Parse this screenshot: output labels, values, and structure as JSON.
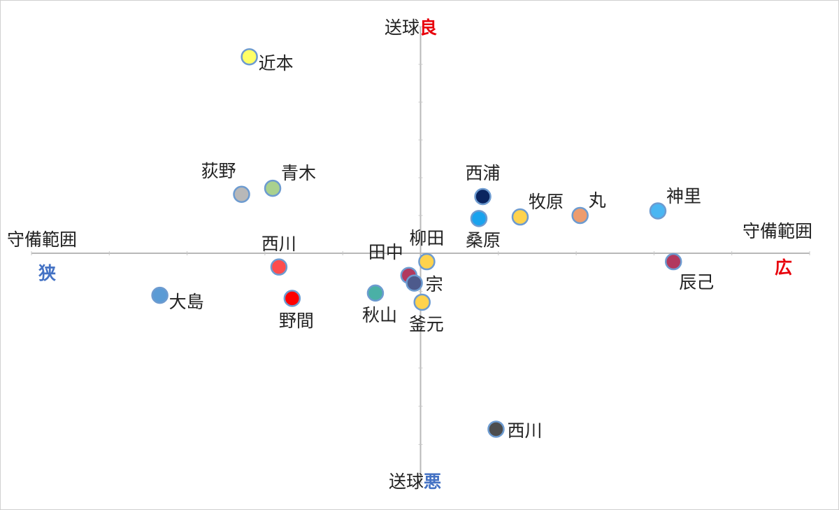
{
  "colors": {
    "axis": "#b8b8b8",
    "tick": "#c8c8c8",
    "label": "#222222",
    "good_wide": "#e8000b",
    "bad_narrow": "#4472c4",
    "point_outline": "#6d9bd0"
  },
  "labels": {
    "top_prefix": "送球",
    "top_accent": "良",
    "bottom_prefix": "送球",
    "bottom_accent": "悪",
    "left_axis": "守備範囲",
    "left_accent": "狭",
    "right_axis": "守備範囲",
    "right_accent": "広"
  },
  "chart_data": {
    "type": "scatter",
    "xlim": [
      -5,
      5
    ],
    "ylim": [
      -3,
      3
    ],
    "grid": false,
    "points": [
      {
        "name": "近本",
        "x": -2.2,
        "y": 2.6,
        "color": "#ffff66",
        "label_dir": "right-below"
      },
      {
        "name": "荻野",
        "x": -2.3,
        "y": 0.78,
        "color": "#b8b8b8",
        "label_dir": "upleft"
      },
      {
        "name": "青木",
        "x": -1.9,
        "y": 0.86,
        "color": "#a9d18e",
        "label_dir": "upright"
      },
      {
        "name": "西浦",
        "x": 0.8,
        "y": 0.75,
        "color": "#0b2560",
        "label_dir": "up"
      },
      {
        "name": "桑原",
        "x": 0.75,
        "y": 0.46,
        "color": "#1aa3ee",
        "label_dir": "down"
      },
      {
        "name": "牧原",
        "x": 1.28,
        "y": 0.48,
        "color": "#ffd34d",
        "label_dir": "upright"
      },
      {
        "name": "丸",
        "x": 2.05,
        "y": 0.5,
        "color": "#ed9c6e",
        "label_dir": "upright"
      },
      {
        "name": "神里",
        "x": 3.05,
        "y": 0.56,
        "color": "#4ab6f2",
        "label_dir": "upright"
      },
      {
        "name": "柳田",
        "x": 0.08,
        "y": -0.11,
        "color": "#ffd34d",
        "label_dir": "up"
      },
      {
        "name": "辰己",
        "x": 3.25,
        "y": -0.11,
        "color": "#b2395e",
        "label_dir": "downright"
      },
      {
        "name": "田中",
        "x": -0.15,
        "y": -0.29,
        "color": "#b2395e",
        "label_dir": "upleft"
      },
      {
        "name": "宗",
        "x": -0.08,
        "y": -0.39,
        "color": "#4d5a8c",
        "label_dir": "right"
      },
      {
        "name": "西川",
        "x": -1.82,
        "y": -0.18,
        "color": "#ff4d4d",
        "label_dir": "up"
      },
      {
        "name": "大島",
        "x": -3.35,
        "y": -0.55,
        "color": "#5b9bd5",
        "label_dir": "right-below"
      },
      {
        "name": "野間",
        "x": -1.65,
        "y": -0.59,
        "color": "#ff0000",
        "label_dir": "down"
      },
      {
        "name": "秋山",
        "x": -0.58,
        "y": -0.52,
        "color": "#4ab0a6",
        "label_dir": "down"
      },
      {
        "name": "釜元",
        "x": 0.02,
        "y": -0.64,
        "color": "#ffd34d",
        "label_dir": "down"
      },
      {
        "name": "西川",
        "x": 0.97,
        "y": -2.3,
        "color": "#4d4d4d",
        "label_dir": "right"
      }
    ]
  }
}
